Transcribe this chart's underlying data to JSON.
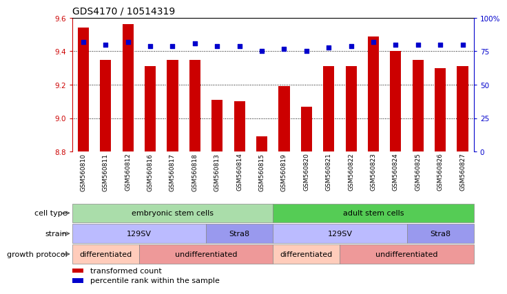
{
  "title": "GDS4170 / 10514319",
  "samples": [
    "GSM560810",
    "GSM560811",
    "GSM560812",
    "GSM560816",
    "GSM560817",
    "GSM560818",
    "GSM560813",
    "GSM560814",
    "GSM560815",
    "GSM560819",
    "GSM560820",
    "GSM560821",
    "GSM560822",
    "GSM560823",
    "GSM560824",
    "GSM560825",
    "GSM560826",
    "GSM560827"
  ],
  "bar_values": [
    9.54,
    9.35,
    9.56,
    9.31,
    9.35,
    9.35,
    9.11,
    9.1,
    8.89,
    9.19,
    9.07,
    9.31,
    9.31,
    9.49,
    9.4,
    9.35,
    9.3,
    9.31
  ],
  "dot_values": [
    82,
    80,
    82,
    79,
    79,
    81,
    79,
    79,
    75,
    77,
    75,
    78,
    79,
    82,
    80,
    80,
    80,
    80
  ],
  "ylim_left": [
    8.8,
    9.6
  ],
  "ylim_right": [
    0,
    100
  ],
  "yticks_left": [
    8.8,
    9.0,
    9.2,
    9.4,
    9.6
  ],
  "yticks_right": [
    0,
    25,
    50,
    75,
    100
  ],
  "ytick_labels_right": [
    "0",
    "25",
    "50",
    "75",
    "100%"
  ],
  "bar_color": "#cc0000",
  "dot_color": "#0000cc",
  "bar_bottom": 8.8,
  "grid_lines": [
    9.0,
    9.2,
    9.4
  ],
  "annotation_rows": [
    {
      "label": "cell type",
      "segments": [
        {
          "text": "embryonic stem cells",
          "start": 0,
          "end": 9,
          "color": "#aaddaa"
        },
        {
          "text": "adult stem cells",
          "start": 9,
          "end": 18,
          "color": "#55cc55"
        }
      ]
    },
    {
      "label": "strain",
      "segments": [
        {
          "text": "129SV",
          "start": 0,
          "end": 6,
          "color": "#bbbbff"
        },
        {
          "text": "Stra8",
          "start": 6,
          "end": 9,
          "color": "#9999ee"
        },
        {
          "text": "129SV",
          "start": 9,
          "end": 15,
          "color": "#bbbbff"
        },
        {
          "text": "Stra8",
          "start": 15,
          "end": 18,
          "color": "#9999ee"
        }
      ]
    },
    {
      "label": "growth protocol",
      "segments": [
        {
          "text": "differentiated",
          "start": 0,
          "end": 3,
          "color": "#ffccbb"
        },
        {
          "text": "undifferentiated",
          "start": 3,
          "end": 9,
          "color": "#ee9999"
        },
        {
          "text": "differentiated",
          "start": 9,
          "end": 12,
          "color": "#ffccbb"
        },
        {
          "text": "undifferentiated",
          "start": 12,
          "end": 18,
          "color": "#ee9999"
        }
      ]
    }
  ],
  "legend_items": [
    {
      "color": "#cc0000",
      "label": "transformed count"
    },
    {
      "color": "#0000cc",
      "label": "percentile rank within the sample"
    }
  ],
  "bg_color": "#ffffff",
  "title_fontsize": 10,
  "tick_fontsize": 7.5,
  "label_fontsize": 8,
  "annot_fontsize": 8,
  "sample_fontsize": 6.5
}
